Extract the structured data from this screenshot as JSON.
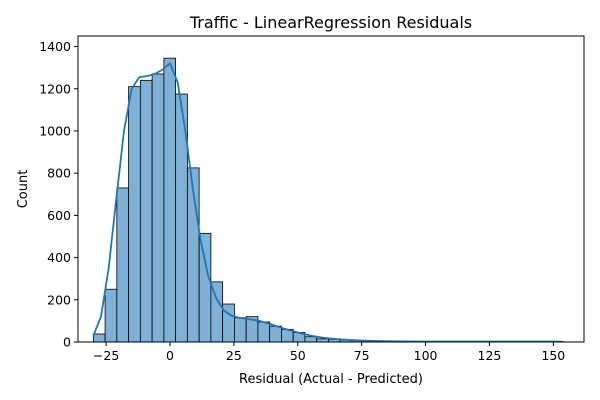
{
  "chart_data": {
    "type": "bar",
    "title": "Traffic - LinearRegression Residuals",
    "xlabel": "Residual (Actual - Predicted)",
    "ylabel": "Count",
    "xlim": [
      -36,
      162
    ],
    "ylim": [
      0,
      1450
    ],
    "xticks": [
      -25,
      0,
      25,
      50,
      75,
      100,
      125,
      150
    ],
    "xtick_labels": [
      "−25",
      "0",
      "25",
      "50",
      "75",
      "100",
      "125",
      "150"
    ],
    "yticks": [
      0,
      200,
      400,
      600,
      800,
      1000,
      1200,
      1400
    ],
    "ytick_labels": [
      "0",
      "200",
      "400",
      "600",
      "800",
      "1000",
      "1200",
      "1400"
    ],
    "bin_start": -30,
    "bin_width": 4.6,
    "counts": [
      38,
      250,
      730,
      1210,
      1240,
      1270,
      1345,
      1175,
      825,
      515,
      285,
      180,
      115,
      120,
      95,
      75,
      60,
      45,
      25,
      15,
      12,
      10,
      8,
      6,
      5,
      4,
      4,
      3,
      3,
      3,
      2,
      2,
      2,
      2,
      2,
      2,
      2,
      2,
      2,
      2
    ],
    "kde": {
      "x": [
        -30,
        -27,
        -24,
        -21,
        -18,
        -15,
        -12,
        -9,
        -6,
        -3,
        0,
        3,
        6,
        9,
        12,
        15,
        18,
        21,
        24,
        27,
        30,
        35,
        40,
        45,
        50,
        55,
        60,
        65,
        70,
        75,
        80,
        90,
        100,
        110,
        120,
        130,
        140,
        153
      ],
      "y": [
        30,
        120,
        350,
        680,
        1000,
        1200,
        1255,
        1260,
        1270,
        1290,
        1320,
        1230,
        1000,
        720,
        480,
        310,
        210,
        150,
        125,
        115,
        110,
        100,
        82,
        62,
        45,
        30,
        20,
        14,
        10,
        7,
        5,
        3,
        2,
        2,
        2,
        2,
        2,
        2
      ]
    },
    "bar_color": "#7fb0d5",
    "line_color": "#1f77b4",
    "grid": false,
    "legend": "none"
  }
}
